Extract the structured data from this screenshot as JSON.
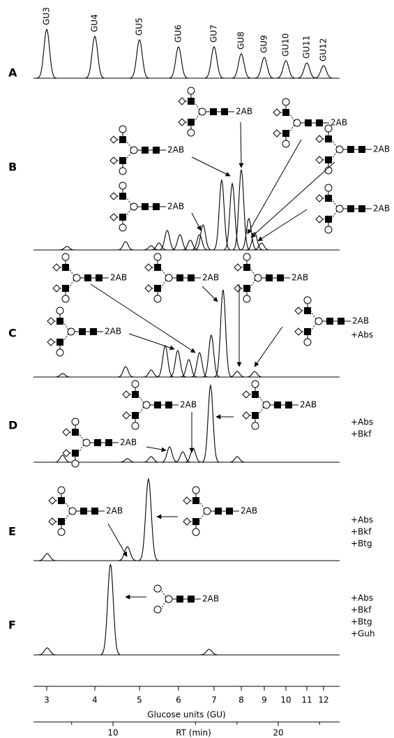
{
  "panels": [
    {
      "label": "A",
      "gu_labels": [
        "GU3",
        "GU4",
        "GU5",
        "GU6",
        "GU7",
        "GU8",
        "GU9",
        "GU10",
        "GU11",
        "GU12"
      ],
      "peaks": [
        {
          "gu": 3,
          "height": 70
        },
        {
          "gu": 4,
          "height": 60
        },
        {
          "gu": 5,
          "height": 55
        },
        {
          "gu": 6,
          "height": 45
        },
        {
          "gu": 7,
          "height": 45
        },
        {
          "gu": 8,
          "height": 35
        },
        {
          "gu": 9,
          "height": 30
        },
        {
          "gu": 10,
          "height": 25
        },
        {
          "gu": 11,
          "height": 22
        },
        {
          "gu": 12,
          "height": 18
        }
      ]
    },
    {
      "label": "B",
      "structures": [
        "2AB",
        "2AB",
        "2AB",
        "2AB",
        "2AB",
        "2AB"
      ],
      "peaks": [
        {
          "gu": 3.42,
          "height": 5
        },
        {
          "gu": 4.69,
          "height": 12
        },
        {
          "gu": 5.3,
          "height": 6
        },
        {
          "gu": 5.5,
          "height": 10
        },
        {
          "gu": 5.71,
          "height": 28
        },
        {
          "gu": 6.04,
          "height": 22
        },
        {
          "gu": 6.33,
          "height": 14
        },
        {
          "gu": 6.59,
          "height": 22
        },
        {
          "gu": 6.69,
          "height": 36
        },
        {
          "gu": 7.28,
          "height": 100
        },
        {
          "gu": 7.67,
          "height": 95
        },
        {
          "gu": 8,
          "height": 115
        },
        {
          "gu": 8.33,
          "height": 45
        },
        {
          "gu": 8.58,
          "height": 25
        },
        {
          "gu": 8.88,
          "height": 10
        }
      ]
    },
    {
      "label": "C",
      "structures": [
        "2AB",
        "2AB",
        "2AB",
        "2AB",
        "2AB"
      ],
      "treatments": [
        "+Abs"
      ],
      "peaks": [
        {
          "gu": 3.33,
          "height": 5
        },
        {
          "gu": 4.69,
          "height": 15
        },
        {
          "gu": 5.3,
          "height": 10
        },
        {
          "gu": 5.66,
          "height": 45
        },
        {
          "gu": 5.98,
          "height": 38
        },
        {
          "gu": 6.29,
          "height": 25
        },
        {
          "gu": 6.59,
          "height": 35
        },
        {
          "gu": 6.92,
          "height": 60
        },
        {
          "gu": 7.33,
          "height": 125
        },
        {
          "gu": 7.85,
          "height": 8
        },
        {
          "gu": 8.58,
          "height": 8
        }
      ]
    },
    {
      "label": "D",
      "structures": [
        "2AB",
        "2AB",
        "2AB"
      ],
      "treatments": [
        "+Abs",
        "+Bkf"
      ],
      "peaks": [
        {
          "gu": 3.33,
          "height": 10
        },
        {
          "gu": 4.73,
          "height": 5
        },
        {
          "gu": 5.3,
          "height": 8
        },
        {
          "gu": 5.77,
          "height": 22
        },
        {
          "gu": 6.12,
          "height": 15
        },
        {
          "gu": 6.41,
          "height": 20
        },
        {
          "gu": 6.9,
          "height": 110
        },
        {
          "gu": 7.85,
          "height": 8
        }
      ]
    },
    {
      "label": "E",
      "structures": [
        "2AB",
        "2AB"
      ],
      "treatments": [
        "+Abs",
        "+Bkf",
        "+Btg"
      ],
      "peaks": [
        {
          "gu": 3.01,
          "height": 10
        },
        {
          "gu": 4.73,
          "height": 20
        },
        {
          "gu": 5.23,
          "height": 117
        }
      ]
    },
    {
      "label": "F",
      "structures": [
        "2AB"
      ],
      "treatments": [
        "+Abs",
        "+Bkf",
        "+Btg",
        "+Guh"
      ],
      "peaks": [
        {
          "gu": 3.01,
          "height": 10
        },
        {
          "gu": 4.35,
          "height": 130
        },
        {
          "gu": 6.86,
          "height": 8
        }
      ]
    }
  ],
  "x_axis": {
    "title": "Glucose units (GU)",
    "ticks": [
      3,
      4,
      5,
      6,
      7,
      8,
      9,
      10,
      11,
      12
    ]
  },
  "rt_axis": {
    "title": "RT (min)",
    "ticks": [
      10,
      20
    ],
    "minor_ticks": [
      7.5,
      15,
      17.5,
      22.5
    ]
  }
}
